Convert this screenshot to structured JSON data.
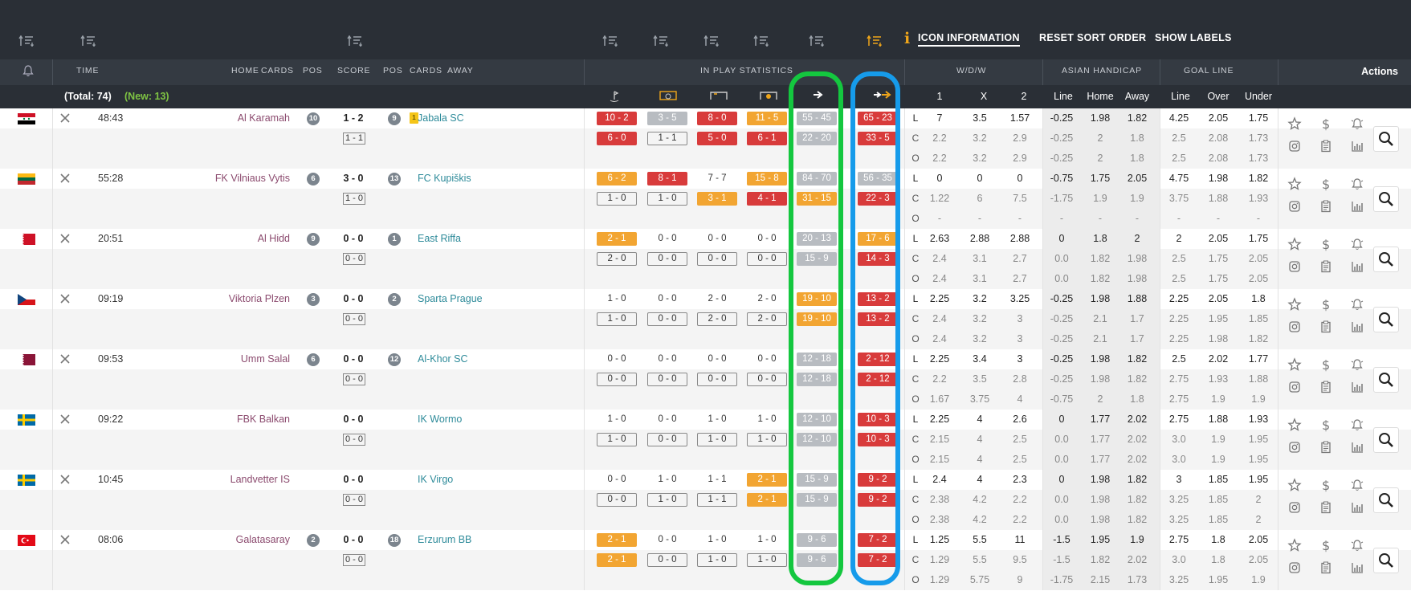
{
  "toolbar": {
    "icon_info": "i",
    "icon_information": "ICON INFORMATION",
    "reset_sort_order": "RESET SORT ORDER",
    "show_labels": "SHOW LABELS"
  },
  "headers": {
    "time": "TIME",
    "home": "HOME",
    "cards": "CARDS",
    "pos": "POS",
    "score": "SCORE",
    "pos2": "POS",
    "cards2": "CARDS",
    "away": "AWAY",
    "in_play_statistics": "IN PLAY STATISTICS",
    "wdw": "W/D/W",
    "asian_handicap": "ASIAN HANDICAP",
    "goal_line": "GOAL LINE",
    "actions": "Actions"
  },
  "subheader": {
    "total": "(Total: 74)",
    "new": "(New: 13)",
    "wdw_cols": [
      "1",
      "X",
      "2"
    ],
    "ah_cols": [
      "Line",
      "Home",
      "Away"
    ],
    "gl_cols": [
      "Line",
      "Over",
      "Under"
    ]
  },
  "odds_row_labels": [
    "L",
    "C",
    "O"
  ],
  "colors": {
    "red": "#d83b3b",
    "orange": "#f2a532",
    "grey": "#b8bcc1",
    "green_highlight": "#14c73f",
    "blue_highlight": "#169bea",
    "home_team": "#8b4a6e",
    "away_team": "#2e8b9a"
  },
  "matches": [
    {
      "flag": "syria",
      "time": "48:43",
      "home": "Al Karamah",
      "home_pos": "10",
      "score": "1 - 2",
      "ht": "1 - 1",
      "away_pos": "9",
      "away_card": "1",
      "away": "Jabala SC",
      "stats": [
        [
          {
            "v": "10 - 2",
            "s": "red"
          },
          {
            "v": "6 - 0",
            "s": "red"
          }
        ],
        [
          {
            "v": "3 - 5",
            "s": "grey"
          },
          {
            "v": "1 - 1",
            "s": "box"
          }
        ],
        [
          {
            "v": "8 - 0",
            "s": "red"
          },
          {
            "v": "5 - 0",
            "s": "red"
          }
        ],
        [
          {
            "v": "11 - 5",
            "s": "orange"
          },
          {
            "v": "6 - 1",
            "s": "red"
          }
        ],
        [
          {
            "v": "55 - 45",
            "s": "grey"
          },
          {
            "v": "22 - 20",
            "s": "grey"
          }
        ],
        [
          {
            "v": "65 - 23",
            "s": "red"
          },
          {
            "v": "33 - 5",
            "s": "red"
          }
        ]
      ],
      "odds": [
        [
          "7",
          "3.5",
          "1.57",
          "-0.25",
          "1.98",
          "1.82",
          "4.25",
          "2.05",
          "1.75"
        ],
        [
          "2.2",
          "3.2",
          "2.9",
          "-0.25",
          "2",
          "1.8",
          "2.5",
          "2.08",
          "1.73"
        ],
        [
          "2.2",
          "3.2",
          "2.9",
          "-0.25",
          "2",
          "1.8",
          "2.5",
          "2.08",
          "1.73"
        ]
      ]
    },
    {
      "flag": "lithuania",
      "time": "55:28",
      "home": "FK Vilniaus Vytis",
      "home_pos": "6",
      "score": "3 - 0",
      "ht": "1 - 0",
      "away_pos": "13",
      "away_card": "",
      "away": "FC Kupiškis",
      "stats": [
        [
          {
            "v": "6 - 2",
            "s": "orange"
          },
          {
            "v": "1 - 0",
            "s": "box"
          }
        ],
        [
          {
            "v": "8 - 1",
            "s": "red"
          },
          {
            "v": "1 - 0",
            "s": "box"
          }
        ],
        [
          {
            "v": "7 - 7",
            "s": "plain"
          },
          {
            "v": "3 - 1",
            "s": "orange"
          }
        ],
        [
          {
            "v": "15 - 8",
            "s": "orange"
          },
          {
            "v": "4 - 1",
            "s": "red"
          }
        ],
        [
          {
            "v": "84 - 70",
            "s": "grey"
          },
          {
            "v": "31 - 15",
            "s": "orange"
          }
        ],
        [
          {
            "v": "56 - 35",
            "s": "grey"
          },
          {
            "v": "22 - 3",
            "s": "red"
          }
        ]
      ],
      "odds": [
        [
          "0",
          "0",
          "0",
          "-0.75",
          "1.75",
          "2.05",
          "4.75",
          "1.98",
          "1.82"
        ],
        [
          "1.22",
          "6",
          "7.5",
          "-1.75",
          "1.9",
          "1.9",
          "3.75",
          "1.88",
          "1.93"
        ],
        [
          "-",
          "-",
          "-",
          "-",
          "-",
          "-",
          "-",
          "-",
          "-"
        ]
      ]
    },
    {
      "flag": "bahrain",
      "time": "20:51",
      "home": "Al Hidd",
      "home_pos": "9",
      "score": "0 - 0",
      "ht": "0 - 0",
      "away_pos": "1",
      "away_card": "",
      "away": "East Riffa",
      "stats": [
        [
          {
            "v": "2 - 1",
            "s": "orange"
          },
          {
            "v": "2 - 0",
            "s": "box"
          }
        ],
        [
          {
            "v": "0 - 0",
            "s": "plain"
          },
          {
            "v": "0 - 0",
            "s": "box"
          }
        ],
        [
          {
            "v": "0 - 0",
            "s": "plain"
          },
          {
            "v": "0 - 0",
            "s": "box"
          }
        ],
        [
          {
            "v": "0 - 0",
            "s": "plain"
          },
          {
            "v": "0 - 0",
            "s": "box"
          }
        ],
        [
          {
            "v": "20 - 13",
            "s": "grey"
          },
          {
            "v": "15 - 9",
            "s": "grey"
          }
        ],
        [
          {
            "v": "17 - 6",
            "s": "orange"
          },
          {
            "v": "14 - 3",
            "s": "red"
          }
        ]
      ],
      "odds": [
        [
          "2.63",
          "2.88",
          "2.88",
          "0",
          "1.8",
          "2",
          "2",
          "2.05",
          "1.75"
        ],
        [
          "2.4",
          "3.1",
          "2.7",
          "0.0",
          "1.82",
          "1.98",
          "2.5",
          "1.75",
          "2.05"
        ],
        [
          "2.4",
          "3.1",
          "2.7",
          "0.0",
          "1.82",
          "1.98",
          "2.5",
          "1.75",
          "2.05"
        ]
      ]
    },
    {
      "flag": "czech",
      "time": "09:19",
      "home": "Viktoria Plzen",
      "home_pos": "3",
      "score": "0 - 0",
      "ht": "0 - 0",
      "away_pos": "2",
      "away_card": "",
      "away": "Sparta Prague",
      "stats": [
        [
          {
            "v": "1 - 0",
            "s": "plain"
          },
          {
            "v": "1 - 0",
            "s": "box"
          }
        ],
        [
          {
            "v": "0 - 0",
            "s": "plain"
          },
          {
            "v": "0 - 0",
            "s": "box"
          }
        ],
        [
          {
            "v": "2 - 0",
            "s": "plain"
          },
          {
            "v": "2 - 0",
            "s": "box"
          }
        ],
        [
          {
            "v": "2 - 0",
            "s": "plain"
          },
          {
            "v": "2 - 0",
            "s": "box"
          }
        ],
        [
          {
            "v": "19 - 10",
            "s": "orange"
          },
          {
            "v": "19 - 10",
            "s": "orange"
          }
        ],
        [
          {
            "v": "13 - 2",
            "s": "red"
          },
          {
            "v": "13 - 2",
            "s": "red"
          }
        ]
      ],
      "odds": [
        [
          "2.25",
          "3.2",
          "3.25",
          "-0.25",
          "1.98",
          "1.88",
          "2.25",
          "2.05",
          "1.8"
        ],
        [
          "2.4",
          "3.2",
          "3",
          "-0.25",
          "2.1",
          "1.7",
          "2.25",
          "1.95",
          "1.85"
        ],
        [
          "2.4",
          "3.2",
          "3",
          "-0.25",
          "2.1",
          "1.7",
          "2.25",
          "1.98",
          "1.82"
        ]
      ]
    },
    {
      "flag": "qatar",
      "time": "09:53",
      "home": "Umm Salal",
      "home_pos": "6",
      "score": "0 - 0",
      "ht": "0 - 0",
      "away_pos": "12",
      "away_card": "",
      "away": "Al-Khor SC",
      "stats": [
        [
          {
            "v": "0 - 0",
            "s": "plain"
          },
          {
            "v": "0 - 0",
            "s": "box"
          }
        ],
        [
          {
            "v": "0 - 0",
            "s": "plain"
          },
          {
            "v": "0 - 0",
            "s": "box"
          }
        ],
        [
          {
            "v": "0 - 0",
            "s": "plain"
          },
          {
            "v": "0 - 0",
            "s": "box"
          }
        ],
        [
          {
            "v": "0 - 0",
            "s": "plain"
          },
          {
            "v": "0 - 0",
            "s": "box"
          }
        ],
        [
          {
            "v": "12 - 18",
            "s": "grey"
          },
          {
            "v": "12 - 18",
            "s": "grey"
          }
        ],
        [
          {
            "v": "2 - 12",
            "s": "red"
          },
          {
            "v": "2 - 12",
            "s": "red"
          }
        ]
      ],
      "odds": [
        [
          "2.25",
          "3.4",
          "3",
          "-0.25",
          "1.98",
          "1.82",
          "2.5",
          "2.02",
          "1.77"
        ],
        [
          "2.2",
          "3.5",
          "2.8",
          "-0.25",
          "1.98",
          "1.82",
          "2.75",
          "1.93",
          "1.88"
        ],
        [
          "1.67",
          "3.75",
          "4",
          "-0.75",
          "2",
          "1.8",
          "2.75",
          "1.9",
          "1.9"
        ]
      ]
    },
    {
      "flag": "sweden",
      "time": "09:22",
      "home": "FBK Balkan",
      "home_pos": "",
      "score": "0 - 0",
      "ht": "0 - 0",
      "away_pos": "",
      "away_card": "",
      "away": "IK Wormo",
      "stats": [
        [
          {
            "v": "1 - 0",
            "s": "plain"
          },
          {
            "v": "1 - 0",
            "s": "box"
          }
        ],
        [
          {
            "v": "0 - 0",
            "s": "plain"
          },
          {
            "v": "0 - 0",
            "s": "box"
          }
        ],
        [
          {
            "v": "1 - 0",
            "s": "plain"
          },
          {
            "v": "1 - 0",
            "s": "box"
          }
        ],
        [
          {
            "v": "1 - 0",
            "s": "plain"
          },
          {
            "v": "1 - 0",
            "s": "box"
          }
        ],
        [
          {
            "v": "12 - 10",
            "s": "grey"
          },
          {
            "v": "12 - 10",
            "s": "grey"
          }
        ],
        [
          {
            "v": "10 - 3",
            "s": "red"
          },
          {
            "v": "10 - 3",
            "s": "red"
          }
        ]
      ],
      "odds": [
        [
          "2.25",
          "4",
          "2.6",
          "0",
          "1.77",
          "2.02",
          "2.75",
          "1.88",
          "1.93"
        ],
        [
          "2.15",
          "4",
          "2.5",
          "0.0",
          "1.77",
          "2.02",
          "3.0",
          "1.9",
          "1.95"
        ],
        [
          "2.15",
          "4",
          "2.5",
          "0.0",
          "1.77",
          "2.02",
          "3.0",
          "1.9",
          "1.95"
        ]
      ]
    },
    {
      "flag": "sweden",
      "time": "10:45",
      "home": "Landvetter IS",
      "home_pos": "",
      "score": "0 - 0",
      "ht": "0 - 0",
      "away_pos": "",
      "away_card": "",
      "away": "IK Virgo",
      "stats": [
        [
          {
            "v": "0 - 0",
            "s": "plain"
          },
          {
            "v": "0 - 0",
            "s": "box"
          }
        ],
        [
          {
            "v": "1 - 0",
            "s": "plain"
          },
          {
            "v": "1 - 0",
            "s": "box"
          }
        ],
        [
          {
            "v": "1 - 1",
            "s": "plain"
          },
          {
            "v": "1 - 1",
            "s": "box"
          }
        ],
        [
          {
            "v": "2 - 1",
            "s": "orange"
          },
          {
            "v": "2 - 1",
            "s": "orange"
          }
        ],
        [
          {
            "v": "15 - 9",
            "s": "grey"
          },
          {
            "v": "15 - 9",
            "s": "grey"
          }
        ],
        [
          {
            "v": "9 - 2",
            "s": "red"
          },
          {
            "v": "9 - 2",
            "s": "red"
          }
        ]
      ],
      "odds": [
        [
          "2.4",
          "4",
          "2.3",
          "0",
          "1.98",
          "1.82",
          "3",
          "1.85",
          "1.95"
        ],
        [
          "2.38",
          "4.2",
          "2.2",
          "0.0",
          "1.98",
          "1.82",
          "3.25",
          "1.85",
          "2"
        ],
        [
          "2.38",
          "4.2",
          "2.2",
          "0.0",
          "1.98",
          "1.82",
          "3.25",
          "1.85",
          "2"
        ]
      ]
    },
    {
      "flag": "turkey",
      "time": "08:06",
      "home": "Galatasaray",
      "home_pos": "2",
      "score": "0 - 0",
      "ht": "0 - 0",
      "away_pos": "18",
      "away_card": "",
      "away": "Erzurum BB",
      "stats": [
        [
          {
            "v": "2 - 1",
            "s": "orange"
          },
          {
            "v": "2 - 1",
            "s": "orange"
          }
        ],
        [
          {
            "v": "0 - 0",
            "s": "plain"
          },
          {
            "v": "0 - 0",
            "s": "box"
          }
        ],
        [
          {
            "v": "1 - 0",
            "s": "plain"
          },
          {
            "v": "1 - 0",
            "s": "box"
          }
        ],
        [
          {
            "v": "1 - 0",
            "s": "plain"
          },
          {
            "v": "1 - 0",
            "s": "box"
          }
        ],
        [
          {
            "v": "9 - 6",
            "s": "grey"
          },
          {
            "v": "9 - 6",
            "s": "grey"
          }
        ],
        [
          {
            "v": "7 - 2",
            "s": "red"
          },
          {
            "v": "7 - 2",
            "s": "red"
          }
        ]
      ],
      "odds": [
        [
          "1.25",
          "5.5",
          "11",
          "-1.5",
          "1.95",
          "1.9",
          "2.75",
          "1.8",
          "2.05"
        ],
        [
          "1.29",
          "5.5",
          "9.5",
          "-1.5",
          "1.82",
          "2.02",
          "3.0",
          "1.8",
          "2.05"
        ],
        [
          "1.29",
          "5.75",
          "9",
          "-1.75",
          "2.15",
          "1.73",
          "3.25",
          "1.95",
          "1.9"
        ]
      ]
    }
  ]
}
